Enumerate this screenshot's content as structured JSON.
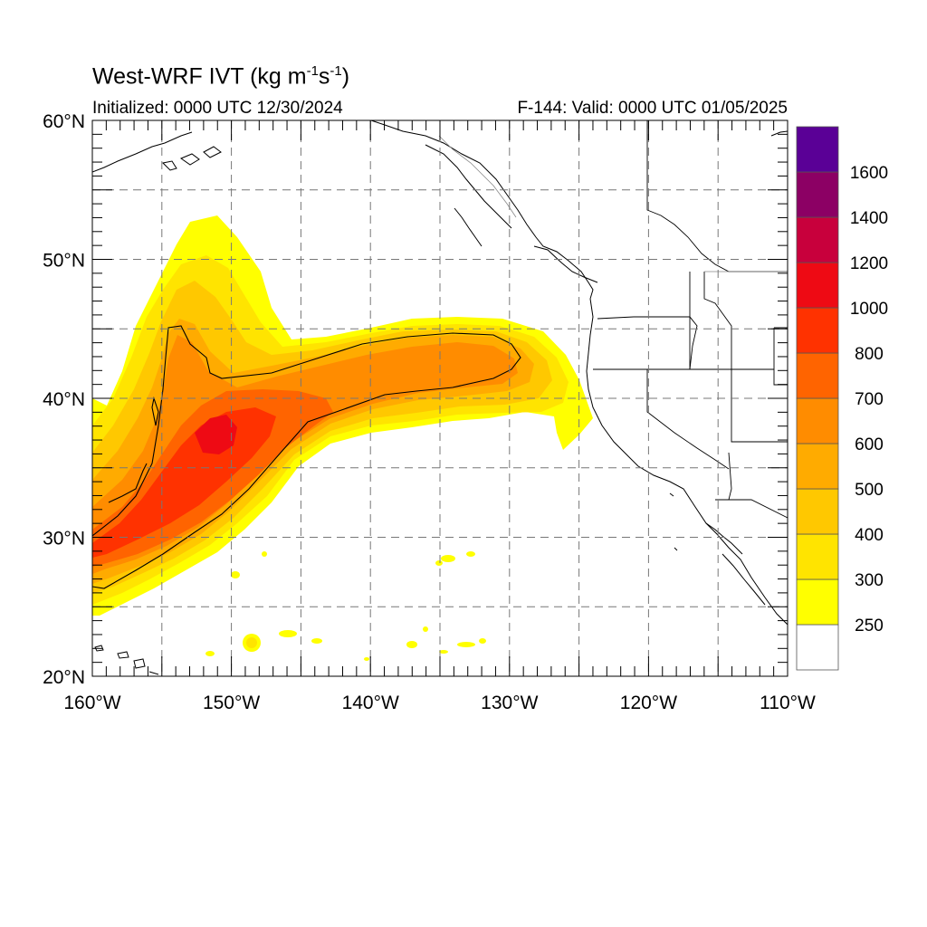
{
  "title": {
    "main": "West-WRF IVT (kg m",
    "exp1": "-1",
    "mid": "s",
    "exp2": "-1",
    "close": ")"
  },
  "subtitle_left": "Initialized: 0000 UTC 12/30/2024",
  "subtitle_right": "F-144: Valid: 0000 UTC 01/05/2025",
  "map": {
    "lon_range": [
      -160,
      -110
    ],
    "lat_range": [
      20,
      60
    ],
    "lon_labels": [
      "160°W",
      "150°W",
      "140°W",
      "130°W",
      "120°W",
      "110°W"
    ],
    "lat_labels": [
      "60°N",
      "50°N",
      "40°N",
      "30°N",
      "20°N"
    ],
    "grid": "dashed every 5°"
  },
  "colorbar": {
    "labels": [
      "250",
      "300",
      "400",
      "500",
      "600",
      "700",
      "800",
      "1000",
      "1200",
      "1400",
      "1600"
    ],
    "colors": [
      "#ffffff",
      "#ffff00",
      "#ffe400",
      "#ffc800",
      "#ffab00",
      "#ff8c00",
      "#ff6400",
      "#ff3200",
      "#ee0a14",
      "#c8003c",
      "#8c0064",
      "#5a0096"
    ]
  }
}
